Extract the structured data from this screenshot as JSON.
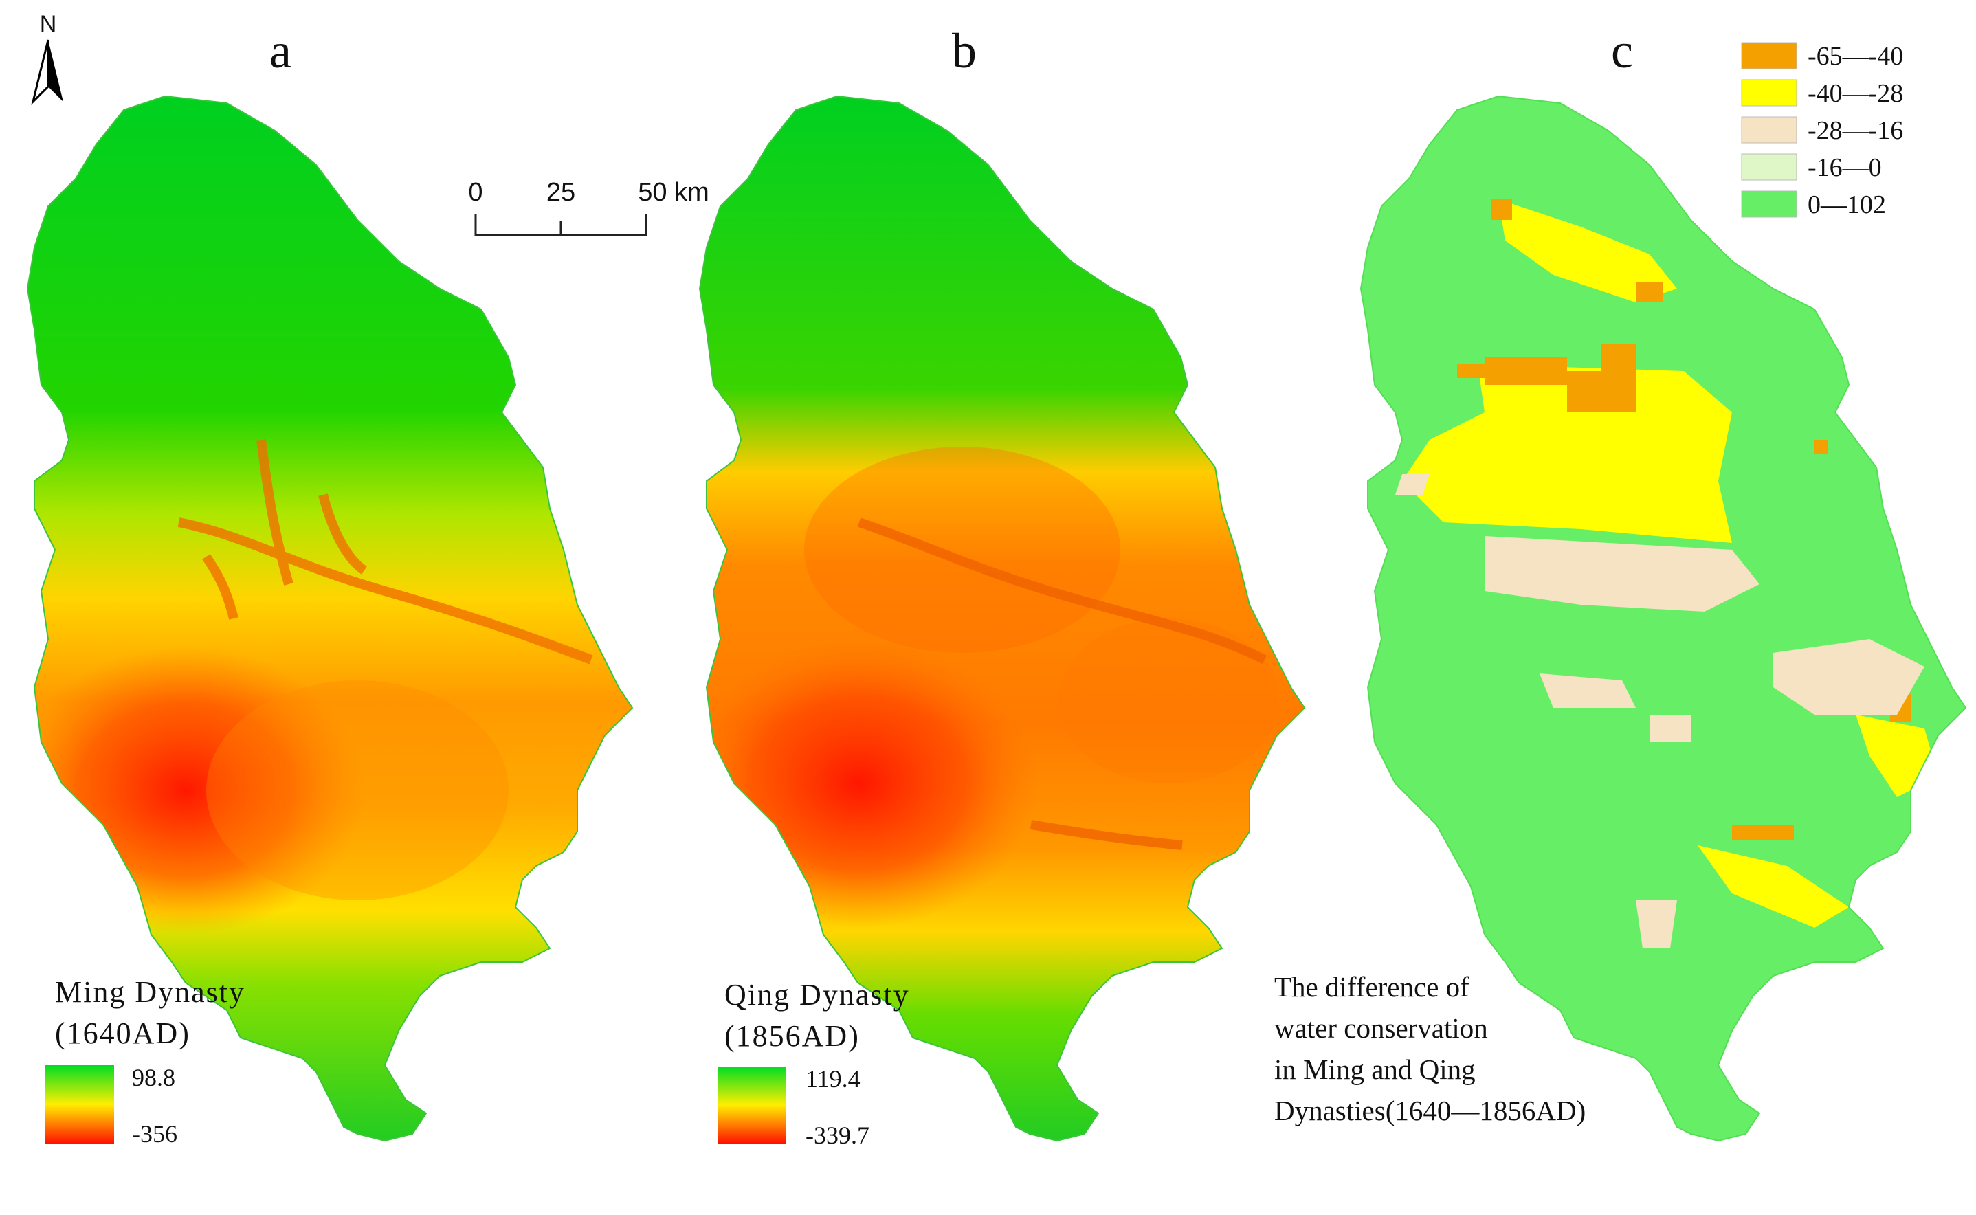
{
  "panels": [
    {
      "letter": "a",
      "title_line1": "Ming Dynasty",
      "title_line2": "(1640AD)",
      "legend_max": "98.8",
      "legend_min": "-356"
    },
    {
      "letter": "b",
      "title_line1": "Qing Dynasty",
      "title_line2": "(1856AD)",
      "legend_max": "119.4",
      "legend_min": "-339.7"
    },
    {
      "letter": "c",
      "caption_lines": [
        "The difference of",
        "water conservation",
        "in Ming and Qing",
        "Dynasties(1640—1856AD)"
      ]
    }
  ],
  "north_arrow": {
    "label": "N"
  },
  "scale_bar": {
    "ticks": [
      "0",
      "25",
      "50 km"
    ]
  },
  "legend_c": {
    "items": [
      {
        "label": "-65—-40",
        "color": "#f4a000"
      },
      {
        "label": "-40—-28",
        "color": "#ffff00"
      },
      {
        "label": "-28—-16",
        "color": "#f6e3c3"
      },
      {
        "label": "-16—0",
        "color": "#dff6c6"
      },
      {
        "label": "0—102",
        "color": "#66ee66"
      }
    ]
  },
  "colors": {
    "ramp_high": "#00dd22",
    "ramp_mid": "#ffee00",
    "ramp_low": "#ff1100",
    "diff_base": "#66ee66"
  }
}
